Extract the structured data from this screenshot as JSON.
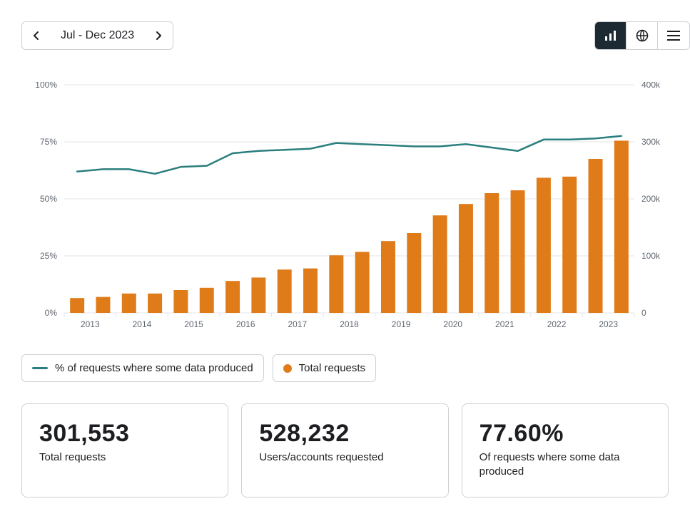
{
  "topbar": {
    "period_label": "Jul - Dec 2023"
  },
  "chart": {
    "type": "bar+line",
    "background_color": "#ffffff",
    "grid_color": "#e4e6ea",
    "axis_text_color": "#606770",
    "axis_fontsize": 12,
    "left_axis": {
      "label": "",
      "min": 0,
      "max": 100,
      "ticks": [
        0,
        25,
        50,
        75,
        100
      ],
      "tick_labels": [
        "0%",
        "25%",
        "50%",
        "75%",
        "100%"
      ]
    },
    "right_axis": {
      "label": "",
      "min": 0,
      "max": 400,
      "ticks": [
        0,
        100,
        200,
        300,
        400
      ],
      "tick_labels": [
        "0",
        "100k",
        "200k",
        "300k",
        "400k"
      ]
    },
    "x_year_labels": [
      "2013",
      "2014",
      "2015",
      "2016",
      "2017",
      "2018",
      "2019",
      "2020",
      "2021",
      "2022",
      "2023"
    ],
    "bars": {
      "color": "#e07b1a",
      "width_ratio": 0.55,
      "values_k": [
        26,
        28,
        34,
        34,
        40,
        44,
        56,
        62,
        76,
        78,
        101,
        107,
        126,
        140,
        171,
        191,
        210,
        215,
        237,
        239,
        270,
        302
      ]
    },
    "line": {
      "color": "#2a7e7e",
      "width": 2.5,
      "values_pct": [
        62,
        63,
        63,
        61,
        64,
        64.5,
        70,
        71,
        71.5,
        72,
        74.5,
        74,
        73.5,
        73,
        73,
        74,
        72.5,
        71,
        76,
        76,
        76.5,
        77.6
      ]
    }
  },
  "legend": {
    "line_label": "% of requests where some data produced",
    "bar_label": "Total requests",
    "line_color": "#2a7e7e",
    "bar_color": "#e07b1a"
  },
  "stats": [
    {
      "value": "301,553",
      "label": "Total requests"
    },
    {
      "value": "528,232",
      "label": "Users/accounts requested"
    },
    {
      "value": "77.60%",
      "label": "Of requests where some data produced"
    }
  ]
}
